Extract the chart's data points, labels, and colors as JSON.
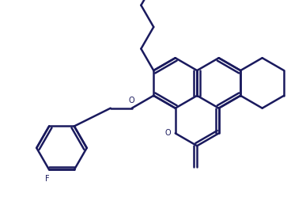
{
  "line_color": "#1a1a5e",
  "bg_color": "#ffffff",
  "lw": 1.8,
  "figsize": [
    3.87,
    2.54
  ],
  "dpi": 100,
  "xlim": [
    0,
    10
  ],
  "ylim": [
    0,
    6.56
  ]
}
